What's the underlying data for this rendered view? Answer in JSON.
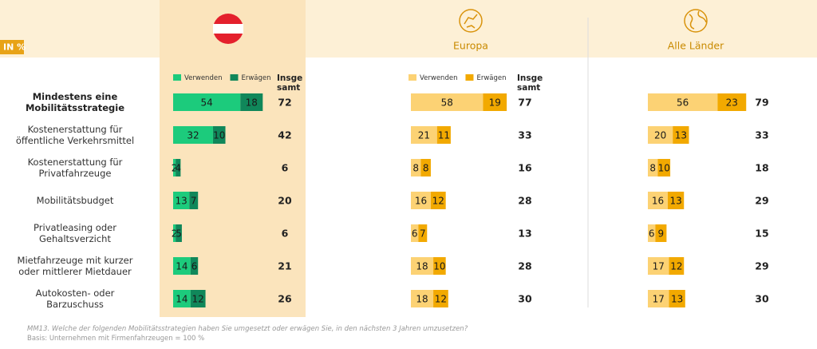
{
  "chart_data": {
    "type": "bar",
    "unit_label": "IN %",
    "categories": [
      "Mindestens eine Mobilitätsstrategie",
      "Kostenerstattung für öffentliche Verkehrsmittel",
      "Kostenerstattung für Privatfahrzeuge",
      "Mobilitätsbudget",
      "Privatleasing oder Gehaltsverzicht",
      "Mietfahrzeuge mit kurzer oder mittlerer Mietdauer",
      "Autokosten- oder Barzuschuss"
    ],
    "panels": [
      {
        "total_label": "Insge samt",
        "series": [
          {
            "name": "Verwenden",
            "color": "#1ccb7c",
            "values": [
              54,
              32,
              2,
              13,
              2,
              14,
              14
            ]
          },
          {
            "name": "Erwägen",
            "color": "#10875a",
            "values": [
              18,
              10,
              4,
              7,
              5,
              6,
              12
            ]
          }
        ],
        "totals": [
          72,
          42,
          6,
          20,
          6,
          21,
          26
        ]
      },
      {
        "title": "Europa",
        "total_label": "Insge samt",
        "series": [
          {
            "name": "Verwenden",
            "color": "#fcd274",
            "values": [
              58,
              21,
              8,
              16,
              6,
              18,
              18
            ]
          },
          {
            "name": "Erwägen",
            "color": "#f2a900",
            "values": [
              19,
              11,
              8,
              12,
              7,
              10,
              12
            ]
          }
        ],
        "totals": [
          77,
          33,
          16,
          28,
          13,
          28,
          30
        ]
      },
      {
        "title": "Alle Länder",
        "series": [
          {
            "color": "#fcd274",
            "values": [
              56,
              20,
              8,
              16,
              6,
              17,
              17
            ]
          },
          {
            "color": "#f2a900",
            "values": [
              23,
              13,
              10,
              13,
              9,
              12,
              13
            ]
          }
        ],
        "totals": [
          79,
          33,
          18,
          29,
          15,
          29,
          30
        ]
      }
    ],
    "footnotes": [
      "MM13. Welche der folgenden Mobilitätsstrategien haben Sie umgesetzt oder erwägen Sie, in den nächsten 3 Jahren umzusetzen?",
      "Basis: Unternehmen mit Firmenfahrzeugen = 100 %"
    ]
  }
}
